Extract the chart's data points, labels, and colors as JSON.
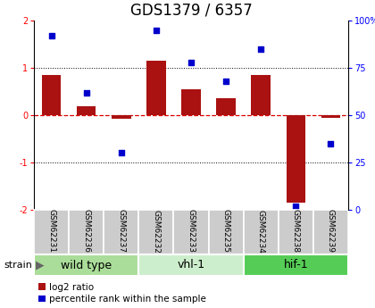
{
  "title": "GDS1379 / 6357",
  "samples": [
    "GSM62231",
    "GSM62236",
    "GSM62237",
    "GSM62232",
    "GSM62233",
    "GSM62235",
    "GSM62234",
    "GSM62238",
    "GSM62239"
  ],
  "log2_ratio": [
    0.85,
    0.18,
    -0.08,
    1.15,
    0.55,
    0.35,
    0.85,
    -1.85,
    -0.05
  ],
  "pct_rank": [
    92,
    62,
    30,
    95,
    78,
    68,
    85,
    2,
    35
  ],
  "groups": [
    {
      "label": "wild type",
      "start": 0,
      "end": 3,
      "color": "#aadd99"
    },
    {
      "label": "vhl-1",
      "start": 3,
      "end": 6,
      "color": "#cceecc"
    },
    {
      "label": "hif-1",
      "start": 6,
      "end": 9,
      "color": "#55cc55"
    }
  ],
  "bar_color": "#aa1111",
  "dot_color": "#0000cc",
  "ylim": [
    -2,
    2
  ],
  "yticks_left": [
    -2,
    -1,
    0,
    1,
    2
  ],
  "yticks_right_vals": [
    -2,
    -1,
    0,
    1,
    2
  ],
  "yticks_right_labels": [
    "0",
    "25",
    "50",
    "75",
    "100%"
  ],
  "hline0_color": "#dd0000",
  "hline0_style": "--",
  "hline1_color": "#000000",
  "hline1_style": ":",
  "bg_color": "#ffffff",
  "sample_box_color": "#cccccc",
  "sample_box_edge": "#ffffff",
  "legend_bar_label": "log2 ratio",
  "legend_dot_label": "percentile rank within the sample",
  "strain_label": "strain",
  "title_fontsize": 12,
  "tick_fontsize": 7,
  "sample_fontsize": 6.5,
  "group_fontsize": 9,
  "legend_fontsize": 7.5
}
